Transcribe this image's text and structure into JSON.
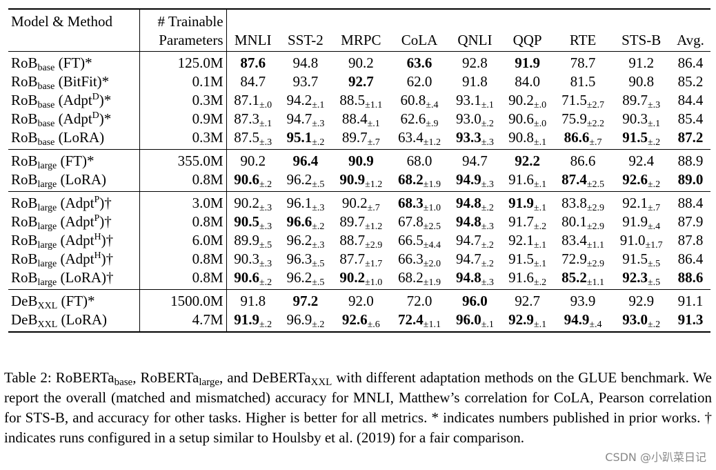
{
  "header": {
    "model_method": "Model & Method",
    "params_line1": "# Trainable",
    "params_line2": "Parameters",
    "tasks": [
      "MNLI",
      "SST-2",
      "MRPC",
      "CoLA",
      "QNLI",
      "QQP",
      "RTE",
      "STS-B",
      "Avg."
    ]
  },
  "groups": [
    {
      "rows": [
        {
          "base": "RoB",
          "sub": "base",
          "method": " (FT)",
          "sup": "",
          "suffix": "*",
          "params": "125.0M",
          "cells": [
            {
              "v": "87.6",
              "b": true,
              "pm": ""
            },
            {
              "v": "94.8",
              "b": false,
              "pm": ""
            },
            {
              "v": "90.2",
              "b": false,
              "pm": ""
            },
            {
              "v": "63.6",
              "b": true,
              "pm": ""
            },
            {
              "v": "92.8",
              "b": false,
              "pm": ""
            },
            {
              "v": "91.9",
              "b": true,
              "pm": ""
            },
            {
              "v": "78.7",
              "b": false,
              "pm": ""
            },
            {
              "v": "91.2",
              "b": false,
              "pm": ""
            },
            {
              "v": "86.4",
              "b": false,
              "pm": ""
            }
          ]
        },
        {
          "base": "RoB",
          "sub": "base",
          "method": " (BitFit)",
          "sup": "",
          "suffix": "*",
          "params": "0.1M",
          "cells": [
            {
              "v": "84.7",
              "b": false,
              "pm": ""
            },
            {
              "v": "93.7",
              "b": false,
              "pm": ""
            },
            {
              "v": "92.7",
              "b": true,
              "pm": ""
            },
            {
              "v": "62.0",
              "b": false,
              "pm": ""
            },
            {
              "v": "91.8",
              "b": false,
              "pm": ""
            },
            {
              "v": "84.0",
              "b": false,
              "pm": ""
            },
            {
              "v": "81.5",
              "b": false,
              "pm": ""
            },
            {
              "v": "90.8",
              "b": false,
              "pm": ""
            },
            {
              "v": "85.2",
              "b": false,
              "pm": ""
            }
          ]
        },
        {
          "base": "RoB",
          "sub": "base",
          "method": " (Adpt",
          "sup": "D",
          "suffix": ")*",
          "params": "0.3M",
          "cells": [
            {
              "v": "87.1",
              "b": false,
              "pm": "±.0"
            },
            {
              "v": "94.2",
              "b": false,
              "pm": "±.1"
            },
            {
              "v": "88.5",
              "b": false,
              "pm": "±1.1"
            },
            {
              "v": "60.8",
              "b": false,
              "pm": "±.4"
            },
            {
              "v": "93.1",
              "b": false,
              "pm": "±.1"
            },
            {
              "v": "90.2",
              "b": false,
              "pm": "±.0"
            },
            {
              "v": "71.5",
              "b": false,
              "pm": "±2.7"
            },
            {
              "v": "89.7",
              "b": false,
              "pm": "±.3"
            },
            {
              "v": "84.4",
              "b": false,
              "pm": ""
            }
          ]
        },
        {
          "base": "RoB",
          "sub": "base",
          "method": " (Adpt",
          "sup": "D",
          "suffix": ")*",
          "params": "0.9M",
          "cells": [
            {
              "v": "87.3",
              "b": false,
              "pm": "±.1"
            },
            {
              "v": "94.7",
              "b": false,
              "pm": "±.3"
            },
            {
              "v": "88.4",
              "b": false,
              "pm": "±.1"
            },
            {
              "v": "62.6",
              "b": false,
              "pm": "±.9"
            },
            {
              "v": "93.0",
              "b": false,
              "pm": "±.2"
            },
            {
              "v": "90.6",
              "b": false,
              "pm": "±.0"
            },
            {
              "v": "75.9",
              "b": false,
              "pm": "±2.2"
            },
            {
              "v": "90.3",
              "b": false,
              "pm": "±.1"
            },
            {
              "v": "85.4",
              "b": false,
              "pm": ""
            }
          ]
        },
        {
          "base": "RoB",
          "sub": "base",
          "method": " (LoRA)",
          "sup": "",
          "suffix": "",
          "params": "0.3M",
          "cells": [
            {
              "v": "87.5",
              "b": false,
              "pm": "±.3"
            },
            {
              "v": "95.1",
              "b": true,
              "pm": "±.2"
            },
            {
              "v": "89.7",
              "b": false,
              "pm": "±.7"
            },
            {
              "v": "63.4",
              "b": false,
              "pm": "±1.2"
            },
            {
              "v": "93.3",
              "b": true,
              "pm": "±.3"
            },
            {
              "v": "90.8",
              "b": false,
              "pm": "±.1"
            },
            {
              "v": "86.6",
              "b": true,
              "pm": "±.7"
            },
            {
              "v": "91.5",
              "b": true,
              "pm": "±.2"
            },
            {
              "v": "87.2",
              "b": true,
              "pm": ""
            }
          ]
        }
      ]
    },
    {
      "rows": [
        {
          "base": "RoB",
          "sub": "large",
          "method": " (FT)",
          "sup": "",
          "suffix": "*",
          "params": "355.0M",
          "cells": [
            {
              "v": "90.2",
              "b": false,
              "pm": ""
            },
            {
              "v": "96.4",
              "b": true,
              "pm": ""
            },
            {
              "v": "90.9",
              "b": true,
              "pm": ""
            },
            {
              "v": "68.0",
              "b": false,
              "pm": ""
            },
            {
              "v": "94.7",
              "b": false,
              "pm": ""
            },
            {
              "v": "92.2",
              "b": true,
              "pm": ""
            },
            {
              "v": "86.6",
              "b": false,
              "pm": ""
            },
            {
              "v": "92.4",
              "b": false,
              "pm": ""
            },
            {
              "v": "88.9",
              "b": false,
              "pm": ""
            }
          ]
        },
        {
          "base": "RoB",
          "sub": "large",
          "method": " (LoRA)",
          "sup": "",
          "suffix": "",
          "params": "0.8M",
          "cells": [
            {
              "v": "90.6",
              "b": true,
              "pm": "±.2"
            },
            {
              "v": "96.2",
              "b": false,
              "pm": "±.5"
            },
            {
              "v": "90.9",
              "b": true,
              "pm": "±1.2"
            },
            {
              "v": "68.2",
              "b": true,
              "pm": "±1.9"
            },
            {
              "v": "94.9",
              "b": true,
              "pm": "±.3"
            },
            {
              "v": "91.6",
              "b": false,
              "pm": "±.1"
            },
            {
              "v": "87.4",
              "b": true,
              "pm": "±2.5"
            },
            {
              "v": "92.6",
              "b": true,
              "pm": "±.2"
            },
            {
              "v": "89.0",
              "b": true,
              "pm": ""
            }
          ]
        }
      ]
    },
    {
      "rows": [
        {
          "base": "RoB",
          "sub": "large",
          "method": " (Adpt",
          "sup": "P",
          "suffix": ")†",
          "params": "3.0M",
          "cells": [
            {
              "v": "90.2",
              "b": false,
              "pm": "±.3"
            },
            {
              "v": "96.1",
              "b": false,
              "pm": "±.3"
            },
            {
              "v": "90.2",
              "b": false,
              "pm": "±.7"
            },
            {
              "v": "68.3",
              "b": true,
              "pm": "±1.0"
            },
            {
              "v": "94.8",
              "b": true,
              "pm": "±.2"
            },
            {
              "v": "91.9",
              "b": true,
              "pm": "±.1"
            },
            {
              "v": "83.8",
              "b": false,
              "pm": "±2.9"
            },
            {
              "v": "92.1",
              "b": false,
              "pm": "±.7"
            },
            {
              "v": "88.4",
              "b": false,
              "pm": ""
            }
          ]
        },
        {
          "base": "RoB",
          "sub": "large",
          "method": " (Adpt",
          "sup": "P",
          "suffix": ")†",
          "params": "0.8M",
          "cells": [
            {
              "v": "90.5",
              "b": true,
              "pm": "±.3"
            },
            {
              "v": "96.6",
              "b": true,
              "pm": "±.2"
            },
            {
              "v": "89.7",
              "b": false,
              "pm": "±1.2"
            },
            {
              "v": "67.8",
              "b": false,
              "pm": "±2.5"
            },
            {
              "v": "94.8",
              "b": true,
              "pm": "±.3"
            },
            {
              "v": "91.7",
              "b": false,
              "pm": "±.2"
            },
            {
              "v": "80.1",
              "b": false,
              "pm": "±2.9"
            },
            {
              "v": "91.9",
              "b": false,
              "pm": "±.4"
            },
            {
              "v": "87.9",
              "b": false,
              "pm": ""
            }
          ]
        },
        {
          "base": "RoB",
          "sub": "large",
          "method": " (Adpt",
          "sup": "H",
          "suffix": ")†",
          "params": "6.0M",
          "cells": [
            {
              "v": "89.9",
              "b": false,
              "pm": "±.5"
            },
            {
              "v": "96.2",
              "b": false,
              "pm": "±.3"
            },
            {
              "v": "88.7",
              "b": false,
              "pm": "±2.9"
            },
            {
              "v": "66.5",
              "b": false,
              "pm": "±4.4"
            },
            {
              "v": "94.7",
              "b": false,
              "pm": "±.2"
            },
            {
              "v": "92.1",
              "b": false,
              "pm": "±.1"
            },
            {
              "v": "83.4",
              "b": false,
              "pm": "±1.1"
            },
            {
              "v": "91.0",
              "b": false,
              "pm": "±1.7"
            },
            {
              "v": "87.8",
              "b": false,
              "pm": ""
            }
          ]
        },
        {
          "base": "RoB",
          "sub": "large",
          "method": " (Adpt",
          "sup": "H",
          "suffix": ")†",
          "params": "0.8M",
          "cells": [
            {
              "v": "90.3",
              "b": false,
              "pm": "±.3"
            },
            {
              "v": "96.3",
              "b": false,
              "pm": "±.5"
            },
            {
              "v": "87.7",
              "b": false,
              "pm": "±1.7"
            },
            {
              "v": "66.3",
              "b": false,
              "pm": "±2.0"
            },
            {
              "v": "94.7",
              "b": false,
              "pm": "±.2"
            },
            {
              "v": "91.5",
              "b": false,
              "pm": "±.1"
            },
            {
              "v": "72.9",
              "b": false,
              "pm": "±2.9"
            },
            {
              "v": "91.5",
              "b": false,
              "pm": "±.5"
            },
            {
              "v": "86.4",
              "b": false,
              "pm": ""
            }
          ]
        },
        {
          "base": "RoB",
          "sub": "large",
          "method": " (LoRA)",
          "sup": "",
          "suffix": "†",
          "params": "0.8M",
          "cells": [
            {
              "v": "90.6",
              "b": true,
              "pm": "±.2"
            },
            {
              "v": "96.2",
              "b": false,
              "pm": "±.5"
            },
            {
              "v": "90.2",
              "b": true,
              "pm": "±1.0"
            },
            {
              "v": "68.2",
              "b": false,
              "pm": "±1.9"
            },
            {
              "v": "94.8",
              "b": true,
              "pm": "±.3"
            },
            {
              "v": "91.6",
              "b": false,
              "pm": "±.2"
            },
            {
              "v": "85.2",
              "b": true,
              "pm": "±1.1"
            },
            {
              "v": "92.3",
              "b": true,
              "pm": "±.5"
            },
            {
              "v": "88.6",
              "b": true,
              "pm": ""
            }
          ]
        }
      ]
    },
    {
      "rows": [
        {
          "base": "DeB",
          "sub": "XXL",
          "method": " (FT)",
          "sup": "",
          "suffix": "*",
          "params": "1500.0M",
          "cells": [
            {
              "v": "91.8",
              "b": false,
              "pm": ""
            },
            {
              "v": "97.2",
              "b": true,
              "pm": ""
            },
            {
              "v": "92.0",
              "b": false,
              "pm": ""
            },
            {
              "v": "72.0",
              "b": false,
              "pm": ""
            },
            {
              "v": "96.0",
              "b": true,
              "pm": ""
            },
            {
              "v": "92.7",
              "b": false,
              "pm": ""
            },
            {
              "v": "93.9",
              "b": false,
              "pm": ""
            },
            {
              "v": "92.9",
              "b": false,
              "pm": ""
            },
            {
              "v": "91.1",
              "b": false,
              "pm": ""
            }
          ]
        },
        {
          "base": "DeB",
          "sub": "XXL",
          "method": " (LoRA)",
          "sup": "",
          "suffix": "",
          "params": "4.7M",
          "cells": [
            {
              "v": "91.9",
              "b": true,
              "pm": "±.2"
            },
            {
              "v": "96.9",
              "b": false,
              "pm": "±.2"
            },
            {
              "v": "92.6",
              "b": true,
              "pm": "±.6"
            },
            {
              "v": "72.4",
              "b": true,
              "pm": "±1.1"
            },
            {
              "v": "96.0",
              "b": true,
              "pm": "±.1"
            },
            {
              "v": "92.9",
              "b": true,
              "pm": "±.1"
            },
            {
              "v": "94.9",
              "b": true,
              "pm": "±.4"
            },
            {
              "v": "93.0",
              "b": true,
              "pm": "±.2"
            },
            {
              "v": "91.3",
              "b": true,
              "pm": ""
            }
          ]
        }
      ]
    }
  ],
  "caption": {
    "p1": "Table 2: RoBERTa",
    "s1": "base",
    "p2": ", RoBERTa",
    "s2": "large",
    "p3": ", and DeBERTa",
    "s3": "XXL",
    "p4": " with different adaptation methods on the GLUE benchmark. We report the overall (matched and mismatched) accuracy for MNLI, Matthew’s correlation for CoLA, Pearson correlation for STS-B, and accuracy for other tasks. Higher is better for all metrics. * indicates numbers published in prior works. † indicates runs configured in a setup similar to Houlsby et al. (2019) for a fair comparison."
  },
  "watermark": "CSDN @小趴菜日记"
}
